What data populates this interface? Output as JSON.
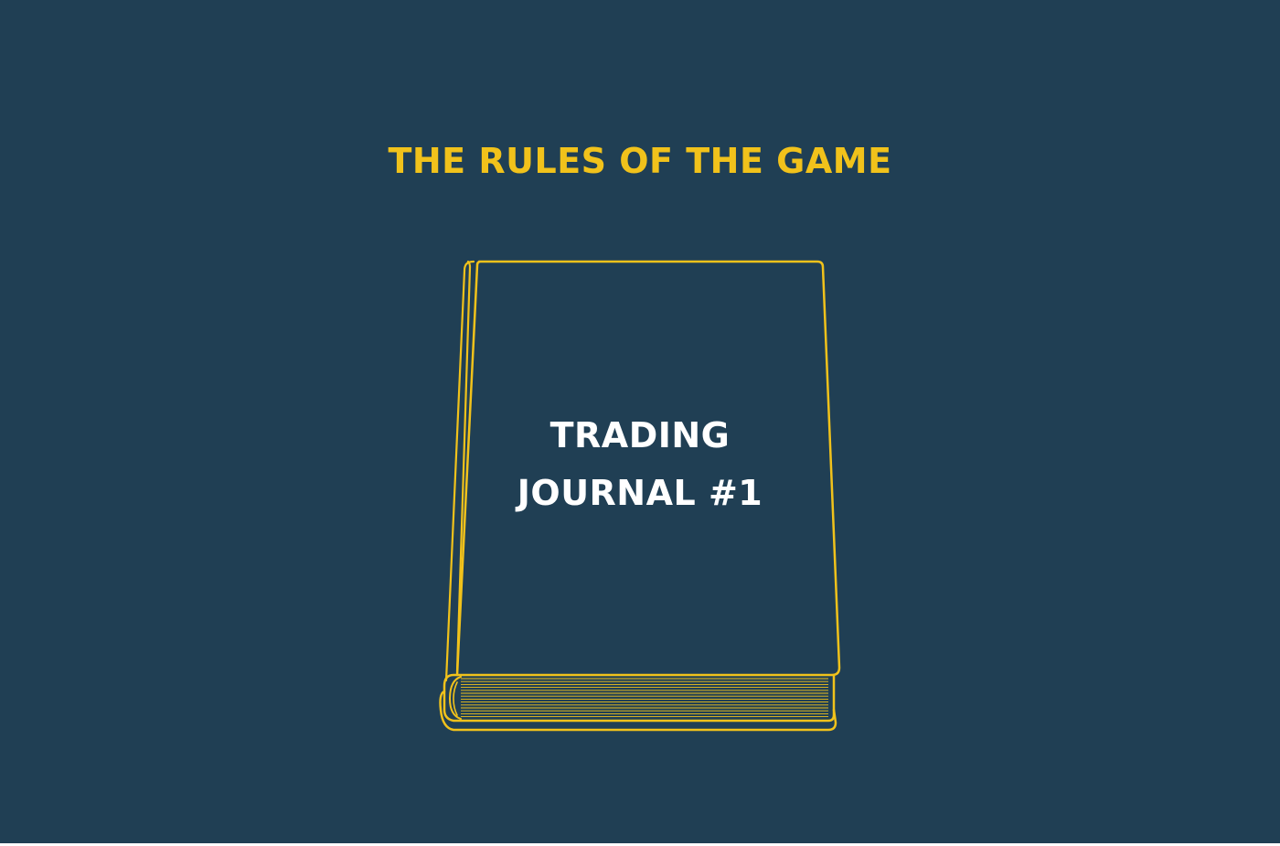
{
  "headline": "THE RULES OF THE GAME",
  "book": {
    "title_line1": "TRADING",
    "title_line2": "JOURNAL #1",
    "icon": "book-icon"
  },
  "colors": {
    "background": "#203f54",
    "accent": "#f1c21b",
    "cover_text": "#ffffff"
  }
}
